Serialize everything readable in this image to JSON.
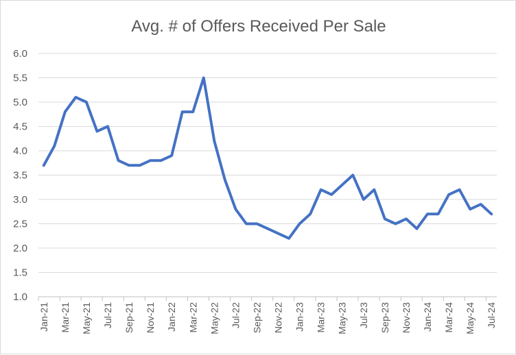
{
  "chart_data": {
    "type": "line",
    "title": "Avg. # of Offers Received Per Sale",
    "xlabel": "",
    "ylabel": "",
    "ylim": [
      1.0,
      6.0
    ],
    "ytick_labels": [
      "1.0",
      "1.5",
      "2.0",
      "2.5",
      "3.0",
      "3.5",
      "4.0",
      "4.5",
      "5.0",
      "5.5",
      "6.0"
    ],
    "grid": true,
    "legend": "none",
    "colors": {
      "series": "#4472c4"
    },
    "categories": [
      "Jan-21",
      "Feb-21",
      "Mar-21",
      "Apr-21",
      "May-21",
      "Jun-21",
      "Jul-21",
      "Aug-21",
      "Sep-21",
      "Oct-21",
      "Nov-21",
      "Dec-21",
      "Jan-22",
      "Feb-22",
      "Mar-22",
      "Apr-22",
      "May-22",
      "Jun-22",
      "Jul-22",
      "Aug-22",
      "Sep-22",
      "Oct-22",
      "Nov-22",
      "Dec-22",
      "Jan-23",
      "Feb-23",
      "Mar-23",
      "Apr-23",
      "May-23",
      "Jun-23",
      "Jul-23",
      "Aug-23",
      "Sep-23",
      "Oct-23",
      "Nov-23",
      "Dec-23",
      "Jan-24",
      "Feb-24",
      "Mar-24",
      "Apr-24",
      "May-24",
      "Jun-24",
      "Jul-24"
    ],
    "shown_tick_labels": [
      "Jan-21",
      "Mar-21",
      "May-21",
      "Jul-21",
      "Sep-21",
      "Nov-21",
      "Jan-22",
      "Mar-22",
      "May-22",
      "Jul-22",
      "Sep-22",
      "Nov-22",
      "Jan-23",
      "Mar-23",
      "May-23",
      "Jul-23",
      "Sep-23",
      "Nov-23",
      "Jan-24",
      "Mar-24",
      "May-24",
      "Jul-24"
    ],
    "series": [
      {
        "name": "Avg. # of Offers Received Per Sale",
        "values": [
          3.7,
          4.1,
          4.8,
          5.1,
          5.0,
          4.4,
          4.5,
          3.8,
          3.7,
          3.7,
          3.8,
          3.8,
          3.9,
          4.8,
          4.8,
          5.5,
          4.2,
          3.4,
          2.8,
          2.5,
          2.5,
          2.4,
          2.3,
          2.2,
          2.5,
          2.7,
          3.2,
          3.1,
          3.3,
          3.5,
          3.0,
          3.2,
          2.6,
          2.5,
          2.6,
          2.4,
          2.7,
          2.7,
          3.1,
          3.2,
          2.8,
          2.9,
          2.7
        ]
      }
    ]
  }
}
